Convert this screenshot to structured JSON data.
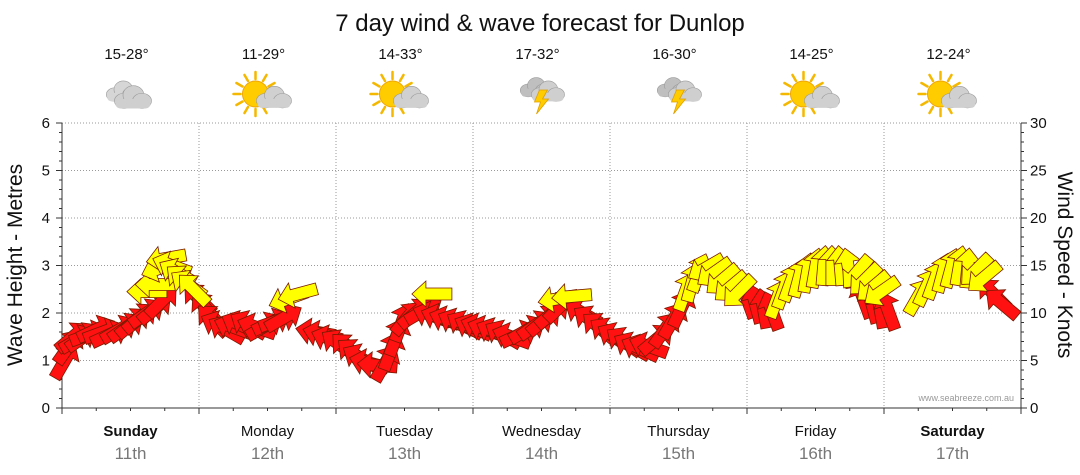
{
  "chart_data": {
    "type": "line",
    "title": "7 day wind & wave forecast for Dunlop",
    "ylabel_left": "Wave Height - Metres",
    "ylabel_right": "Wind Speed - Knots",
    "ylim_left": [
      0,
      6
    ],
    "ylim_right": [
      0,
      30
    ],
    "yticks_left": [
      "0",
      "1",
      "2",
      "3",
      "4",
      "5",
      "6"
    ],
    "yticks_right": [
      "0",
      "5",
      "10",
      "15",
      "20",
      "25",
      "30"
    ],
    "credit": "www.seabreeze.com.au",
    "days": [
      {
        "name": "Sunday",
        "date": "11th",
        "temp": "15-28°",
        "icon": "cloud-icon",
        "bold": true
      },
      {
        "name": "Monday",
        "date": "12th",
        "temp": "11-29°",
        "icon": "sun-cloud-icon",
        "bold": false
      },
      {
        "name": "Tuesday",
        "date": "13th",
        "temp": "14-33°",
        "icon": "sun-cloud-icon",
        "bold": false
      },
      {
        "name": "Wednesday",
        "date": "14th",
        "temp": "17-32°",
        "icon": "storm-icon",
        "bold": false
      },
      {
        "name": "Thursday",
        "date": "15th",
        "temp": "16-30°",
        "icon": "storm-icon",
        "bold": false
      },
      {
        "name": "Friday",
        "date": "16th",
        "temp": "14-25°",
        "icon": "sun-cloud-icon",
        "bold": false
      },
      {
        "name": "Saturday",
        "date": "17th",
        "temp": "12-24°",
        "icon": "sun-cloud-icon",
        "bold": true
      }
    ],
    "series": [
      {
        "color": "#ff1111",
        "kind": "wind-arrow",
        "points": [
          {
            "x": 0.02,
            "y": 1.0,
            "a": -60
          },
          {
            "x": 0.05,
            "y": 1.3,
            "a": -55
          },
          {
            "x": 0.08,
            "y": 1.5,
            "a": -40
          },
          {
            "x": 0.12,
            "y": 1.45,
            "a": -30
          },
          {
            "x": 0.16,
            "y": 1.5,
            "a": -35
          },
          {
            "x": 0.2,
            "y": 1.55,
            "a": -20
          },
          {
            "x": 0.25,
            "y": 1.65,
            "a": -25
          },
          {
            "x": 0.3,
            "y": 1.6,
            "a": -20
          },
          {
            "x": 0.35,
            "y": 1.55,
            "a": -25
          },
          {
            "x": 0.42,
            "y": 1.65,
            "a": -30
          },
          {
            "x": 0.47,
            "y": 1.7,
            "a": -35
          },
          {
            "x": 0.52,
            "y": 1.8,
            "a": -40
          },
          {
            "x": 0.57,
            "y": 1.9,
            "a": -40
          },
          {
            "x": 0.62,
            "y": 2.0,
            "a": -35
          },
          {
            "x": 0.68,
            "y": 2.1,
            "a": -40
          },
          {
            "x": 0.73,
            "y": 2.25,
            "a": -45
          },
          {
            "x": 1.0,
            "y": 2.3,
            "a": 225
          },
          {
            "x": 1.05,
            "y": 2.1,
            "a": 230
          },
          {
            "x": 1.1,
            "y": 1.85,
            "a": 225
          },
          {
            "x": 1.15,
            "y": 1.75,
            "a": 205
          },
          {
            "x": 1.2,
            "y": 1.65,
            "a": 210
          },
          {
            "x": 1.25,
            "y": 1.7,
            "a": 200
          },
          {
            "x": 1.3,
            "y": 1.75,
            "a": 205
          },
          {
            "x": 1.36,
            "y": 1.75,
            "a": 210
          },
          {
            "x": 1.42,
            "y": 1.7,
            "a": 200
          },
          {
            "x": 1.48,
            "y": 1.72,
            "a": -30
          },
          {
            "x": 1.53,
            "y": 1.8,
            "a": -25
          },
          {
            "x": 1.58,
            "y": 1.85,
            "a": -20
          },
          {
            "x": 1.62,
            "y": 1.9,
            "a": -30
          },
          {
            "x": 1.85,
            "y": 1.6,
            "a": 190
          },
          {
            "x": 1.9,
            "y": 1.55,
            "a": 195
          },
          {
            "x": 1.96,
            "y": 1.45,
            "a": 200
          },
          {
            "x": 2.02,
            "y": 1.35,
            "a": 215
          },
          {
            "x": 2.08,
            "y": 1.25,
            "a": 225
          },
          {
            "x": 2.13,
            "y": 1.15,
            "a": 220
          },
          {
            "x": 2.18,
            "y": 1.05,
            "a": 210
          },
          {
            "x": 2.24,
            "y": 0.95,
            "a": 195
          },
          {
            "x": 2.3,
            "y": 0.9,
            "a": 185
          },
          {
            "x": 2.36,
            "y": 0.95,
            "a": -60
          },
          {
            "x": 2.4,
            "y": 1.2,
            "a": -70
          },
          {
            "x": 2.44,
            "y": 1.5,
            "a": -70
          },
          {
            "x": 2.48,
            "y": 1.8,
            "a": -70
          },
          {
            "x": 2.52,
            "y": 1.9,
            "a": -50
          },
          {
            "x": 2.58,
            "y": 2.0,
            "a": -40
          },
          {
            "x": 2.64,
            "y": 2.05,
            "a": -30
          },
          {
            "x": 2.7,
            "y": 1.95,
            "a": 200
          },
          {
            "x": 2.76,
            "y": 1.9,
            "a": 200
          },
          {
            "x": 2.82,
            "y": 1.85,
            "a": 200
          },
          {
            "x": 2.88,
            "y": 1.8,
            "a": 205
          },
          {
            "x": 2.94,
            "y": 1.75,
            "a": 210
          },
          {
            "x": 3.0,
            "y": 1.7,
            "a": 205
          },
          {
            "x": 3.05,
            "y": 1.7,
            "a": 200
          },
          {
            "x": 3.1,
            "y": 1.65,
            "a": 200
          },
          {
            "x": 3.16,
            "y": 1.6,
            "a": 205
          },
          {
            "x": 3.22,
            "y": 1.55,
            "a": 210
          },
          {
            "x": 3.28,
            "y": 1.5,
            "a": 200
          },
          {
            "x": 3.34,
            "y": 1.55,
            "a": -25
          },
          {
            "x": 3.4,
            "y": 1.65,
            "a": -30
          },
          {
            "x": 3.46,
            "y": 1.75,
            "a": -35
          },
          {
            "x": 3.52,
            "y": 1.85,
            "a": -40
          },
          {
            "x": 3.58,
            "y": 2.0,
            "a": -40
          },
          {
            "x": 3.64,
            "y": 2.15,
            "a": -45
          },
          {
            "x": 3.8,
            "y": 2.0,
            "a": 210
          },
          {
            "x": 3.86,
            "y": 1.85,
            "a": 215
          },
          {
            "x": 3.92,
            "y": 1.7,
            "a": 220
          },
          {
            "x": 3.98,
            "y": 1.6,
            "a": 215
          },
          {
            "x": 4.04,
            "y": 1.5,
            "a": 210
          },
          {
            "x": 4.1,
            "y": 1.4,
            "a": 215
          },
          {
            "x": 4.16,
            "y": 1.3,
            "a": 210
          },
          {
            "x": 4.22,
            "y": 1.25,
            "a": 205
          },
          {
            "x": 4.28,
            "y": 1.3,
            "a": 200
          },
          {
            "x": 4.34,
            "y": 1.45,
            "a": -40
          },
          {
            "x": 4.4,
            "y": 1.65,
            "a": -55
          },
          {
            "x": 4.46,
            "y": 1.85,
            "a": -60
          },
          {
            "x": 4.52,
            "y": 2.1,
            "a": -65
          },
          {
            "x": 5.0,
            "y": 2.3,
            "a": 250
          },
          {
            "x": 5.06,
            "y": 2.2,
            "a": 255
          },
          {
            "x": 5.12,
            "y": 2.1,
            "a": 260
          },
          {
            "x": 5.18,
            "y": 2.05,
            "a": 250
          },
          {
            "x": 5.85,
            "y": 2.3,
            "a": 250
          },
          {
            "x": 5.91,
            "y": 2.2,
            "a": 255
          },
          {
            "x": 5.97,
            "y": 2.1,
            "a": 260
          },
          {
            "x": 6.03,
            "y": 2.05,
            "a": 250
          },
          {
            "x": 6.8,
            "y": 2.4,
            "a": 225
          },
          {
            "x": 6.86,
            "y": 2.2,
            "a": 220
          }
        ]
      },
      {
        "color": "#ffff00",
        "kind": "wind-arrow",
        "points": [
          {
            "x": 0.62,
            "y": 2.45,
            "a": 180
          },
          {
            "x": 0.68,
            "y": 2.6,
            "a": 180
          },
          {
            "x": 0.72,
            "y": 2.95,
            "a": 160
          },
          {
            "x": 0.76,
            "y": 3.15,
            "a": 170
          },
          {
            "x": 0.8,
            "y": 3.0,
            "a": 200
          },
          {
            "x": 0.84,
            "y": 2.85,
            "a": 210
          },
          {
            "x": 0.88,
            "y": 2.7,
            "a": 220
          },
          {
            "x": 0.92,
            "y": 2.6,
            "a": 215
          },
          {
            "x": 0.96,
            "y": 2.5,
            "a": 225
          },
          {
            "x": 1.65,
            "y": 2.3,
            "a": 160
          },
          {
            "x": 1.72,
            "y": 2.4,
            "a": 165
          },
          {
            "x": 2.7,
            "y": 2.4,
            "a": 180
          },
          {
            "x": 3.62,
            "y": 2.3,
            "a": 170
          },
          {
            "x": 3.72,
            "y": 2.35,
            "a": 175
          },
          {
            "x": 4.55,
            "y": 2.45,
            "a": -70
          },
          {
            "x": 4.6,
            "y": 2.65,
            "a": -75
          },
          {
            "x": 4.65,
            "y": 2.85,
            "a": -70
          },
          {
            "x": 4.7,
            "y": 2.95,
            "a": 150
          },
          {
            "x": 4.76,
            "y": 2.85,
            "a": 145
          },
          {
            "x": 4.82,
            "y": 2.7,
            "a": 140
          },
          {
            "x": 4.88,
            "y": 2.55,
            "a": 140
          },
          {
            "x": 4.94,
            "y": 2.45,
            "a": 135
          },
          {
            "x": 5.22,
            "y": 2.3,
            "a": -70
          },
          {
            "x": 5.27,
            "y": 2.5,
            "a": -70
          },
          {
            "x": 5.32,
            "y": 2.65,
            "a": -70
          },
          {
            "x": 5.38,
            "y": 2.75,
            "a": -75
          },
          {
            "x": 5.44,
            "y": 2.85,
            "a": -80
          },
          {
            "x": 5.5,
            "y": 2.95,
            "a": -80
          },
          {
            "x": 5.56,
            "y": 3.0,
            "a": -85
          },
          {
            "x": 5.62,
            "y": 3.0,
            "a": -90
          },
          {
            "x": 5.68,
            "y": 3.0,
            "a": -95
          },
          {
            "x": 5.74,
            "y": 2.95,
            "a": -100
          },
          {
            "x": 5.8,
            "y": 2.85,
            "a": 130
          },
          {
            "x": 5.86,
            "y": 2.7,
            "a": 135
          },
          {
            "x": 5.92,
            "y": 2.55,
            "a": 140
          },
          {
            "x": 5.98,
            "y": 2.45,
            "a": 145
          },
          {
            "x": 6.25,
            "y": 2.35,
            "a": -60
          },
          {
            "x": 6.31,
            "y": 2.55,
            "a": -65
          },
          {
            "x": 6.37,
            "y": 2.7,
            "a": -70
          },
          {
            "x": 6.43,
            "y": 2.85,
            "a": -75
          },
          {
            "x": 6.49,
            "y": 2.95,
            "a": -75
          },
          {
            "x": 6.55,
            "y": 3.0,
            "a": -80
          },
          {
            "x": 6.61,
            "y": 2.95,
            "a": -85
          },
          {
            "x": 6.67,
            "y": 2.9,
            "a": 135
          },
          {
            "x": 6.73,
            "y": 2.75,
            "a": 140
          }
        ]
      }
    ]
  }
}
